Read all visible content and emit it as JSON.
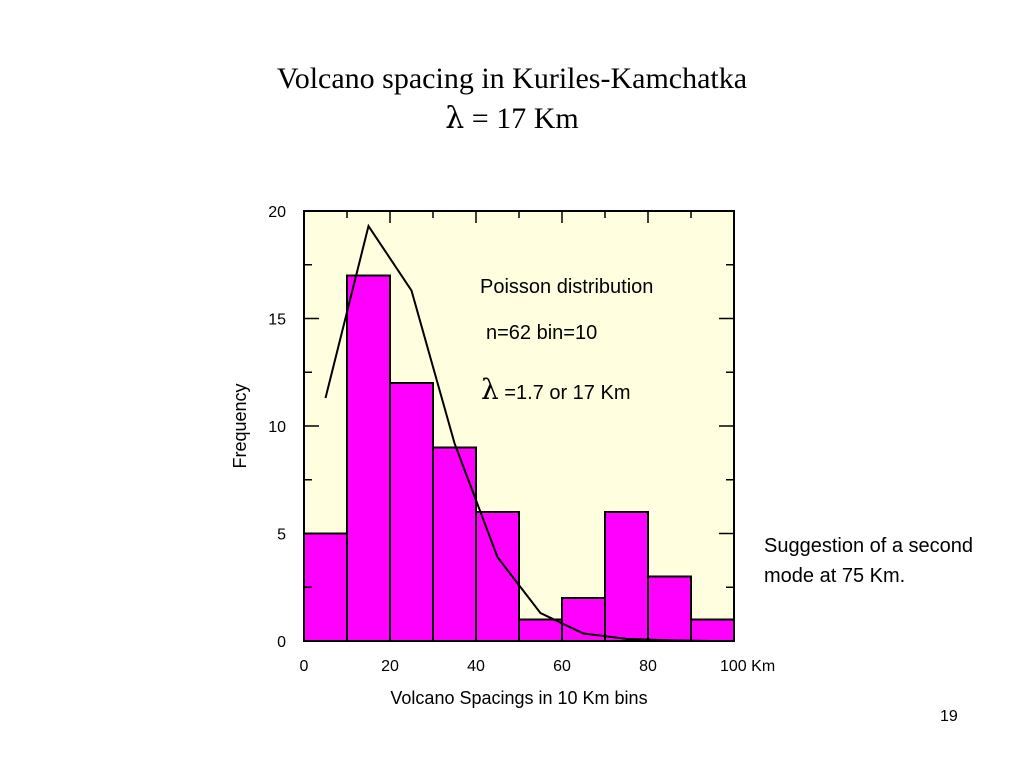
{
  "slide": {
    "title_line1": "Volcano spacing in Kuriles-Kamchatka",
    "title_line2_symbol": "λ",
    "title_line2_rest": " = 17 Km",
    "note": "Suggestion of a second mode at 75 Km.",
    "page_number": "19"
  },
  "chart_data": {
    "type": "bar",
    "xlabel": "Volcano Spacings in 10 Km bins",
    "ylabel": "Frequency",
    "xlim": [
      0,
      100
    ],
    "ylim": [
      0,
      20
    ],
    "x_ticks": [
      0,
      20,
      40,
      60,
      80,
      100
    ],
    "x_tick_labels": [
      "0",
      "20",
      "40",
      "60",
      "80",
      "100 Km"
    ],
    "y_ticks": [
      0,
      5,
      10,
      15,
      20
    ],
    "y_tick_labels": [
      "0",
      "5",
      "10",
      "15",
      "20"
    ],
    "bin_edges": [
      0,
      10,
      20,
      30,
      40,
      50,
      60,
      70,
      80,
      90,
      100
    ],
    "values": [
      5,
      17,
      12,
      9,
      6,
      1,
      2,
      6,
      3,
      1
    ],
    "curve": {
      "x": [
        5,
        15,
        25,
        35,
        45,
        55,
        65,
        75,
        85,
        95
      ],
      "y": [
        11.3,
        19.3,
        16.3,
        9.2,
        3.9,
        1.3,
        0.35,
        0.1,
        0.03,
        0.0
      ]
    },
    "annotations": {
      "line1": "Poisson distribution",
      "line2": "n=62 bin=10",
      "line3_symbol": "λ",
      "line3_rest": " =1.7 or 17 Km"
    },
    "colors": {
      "plot_background": "#ffffe0",
      "bar_fill": "#ff00ff",
      "bar_stroke": "#000000",
      "curve": "#000000"
    },
    "grid": false,
    "legend": "none"
  }
}
